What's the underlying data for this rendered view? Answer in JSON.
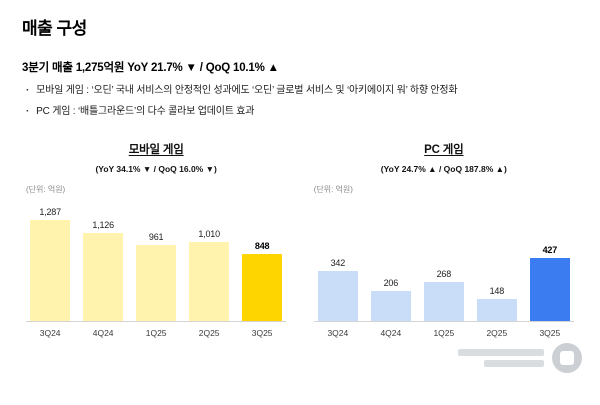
{
  "header": {
    "title": "매출 구성",
    "summary": "3분기 매출 1,275억원 YoY 21.7% ▼ / QoQ 10.1% ▲",
    "bullets": [
      "모바일 게임 : ‘오딘’ 국내 서비스의 안정적인 성과에도 ‘오딘’ 글로벌 서비스 및 ‘아키에이지 워’ 하향 안정화",
      "PC 게임 : ‘배틀그라운드’의 다수 콜라보 업데이트 효과"
    ]
  },
  "colors": {
    "mobile_bar": "#FFF3AE",
    "mobile_highlight": "#FFD500",
    "pc_bar": "#C9DDF8",
    "pc_highlight": "#3B7DF0"
  },
  "chart_data": [
    {
      "type": "bar",
      "title": "모바일 게임",
      "subtitle": "(YoY 34.1% ▼ / QoQ 16.0% ▼)",
      "unit_label": "(단위: 억원)",
      "categories": [
        "3Q24",
        "4Q24",
        "1Q25",
        "2Q25",
        "3Q25"
      ],
      "values": [
        1287,
        1126,
        961,
        1010,
        848
      ],
      "value_labels": [
        "1,287",
        "1,126",
        "961",
        "1,010",
        "848"
      ],
      "ylim": [
        0,
        1400
      ],
      "bar_color": "#FFF3AE",
      "highlight_color": "#FFD500",
      "highlight_index": 4,
      "legend": "none",
      "grid": "off"
    },
    {
      "type": "bar",
      "title": "PC 게임",
      "subtitle": "(YoY 24.7% ▲ / QoQ 187.8% ▲)",
      "unit_label": "(단위: 억원)",
      "categories": [
        "3Q24",
        "4Q24",
        "1Q25",
        "2Q25",
        "3Q25"
      ],
      "values": [
        342,
        206,
        268,
        148,
        427
      ],
      "value_labels": [
        "342",
        "206",
        "268",
        "148",
        "427"
      ],
      "ylim": [
        0,
        750
      ],
      "bar_color": "#C9DDF8",
      "highlight_color": "#3B7DF0",
      "highlight_index": 4,
      "legend": "none",
      "grid": "off"
    }
  ]
}
